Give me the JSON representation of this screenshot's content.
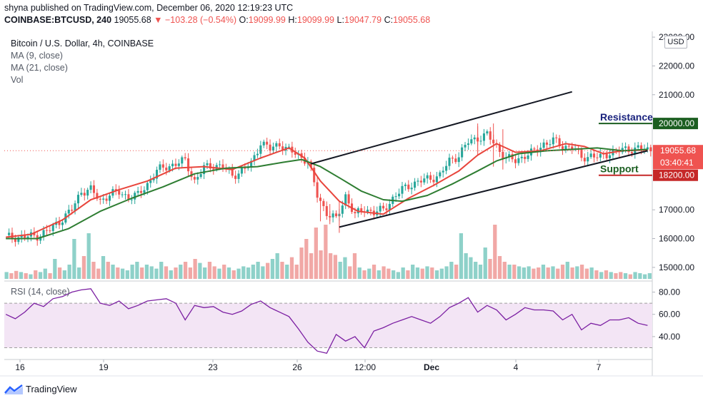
{
  "header": {
    "published": "shyna published on TradingView.com, December 06, 2020 12:19:23 UTC",
    "symbol": "COINBASE:BTCUSD, 240",
    "last": "19055.68",
    "change": "▼ −103.28 (−0.54%)",
    "o_label": "O:",
    "o": "19099.99",
    "h_label": "H:",
    "h": "19099.99",
    "l_label": "L:",
    "l": "19047.79",
    "c_label": "C:",
    "c": "19055.68"
  },
  "legend": {
    "title": "Bitcoin / U.S. Dollar, 4h, COINBASE",
    "ma9": "MA (9, close)",
    "ma21": "MA (21, close)",
    "vol": "Vol",
    "rsi": "RSI (14, close)"
  },
  "currency": "USD",
  "footer": {
    "brand": "TradingView"
  },
  "colors": {
    "up": "#26a69a",
    "down": "#ef5350",
    "ma9": "#e8453c",
    "ma21": "#2e7d32",
    "rsi": "#7b1fa2",
    "rsi_band": "#f3e5f5"
  },
  "chart_data": [
    {
      "type": "candlestick",
      "title": "Bitcoin / U.S. Dollar, 4h, COINBASE",
      "y_ticks": [
        "23000.00",
        "22000.00",
        "21000.00",
        "20000.00",
        "19055.68",
        "03:40:41",
        "18200.00",
        "17000.00",
        "16000.00",
        "15000.00"
      ],
      "x_ticks": [
        "16",
        "19",
        "23",
        "26",
        "12:00",
        "Dec",
        "4",
        "7"
      ],
      "ylim": [
        14600,
        23200
      ],
      "last_price": 19055.68,
      "countdown": "03:40:41",
      "close_path": [
        [
          0,
          16050
        ],
        [
          5,
          16050
        ],
        [
          10,
          16100
        ],
        [
          14,
          16300
        ],
        [
          18,
          16700
        ],
        [
          21,
          17000
        ],
        [
          24,
          17650
        ],
        [
          27,
          17700
        ],
        [
          30,
          17300
        ],
        [
          33,
          17550
        ],
        [
          36,
          17600
        ],
        [
          39,
          17450
        ],
        [
          42,
          17500
        ],
        [
          45,
          17900
        ],
        [
          48,
          18350
        ],
        [
          51,
          18500
        ],
        [
          54,
          18600
        ],
        [
          57,
          18700
        ],
        [
          60,
          18000
        ],
        [
          63,
          18450
        ],
        [
          66,
          18550
        ],
        [
          69,
          18500
        ],
        [
          72,
          18200
        ],
        [
          75,
          18350
        ],
        [
          78,
          18600
        ],
        [
          81,
          19350
        ],
        [
          84,
          19100
        ],
        [
          87,
          19300
        ],
        [
          90,
          19050
        ],
        [
          93,
          18900
        ],
        [
          96,
          18700
        ],
        [
          99,
          17500
        ],
        [
          102,
          16900
        ],
        [
          105,
          16650
        ],
        [
          108,
          17500
        ],
        [
          111,
          16800
        ],
        [
          114,
          17050
        ],
        [
          117,
          16900
        ],
        [
          120,
          17000
        ],
        [
          123,
          17400
        ],
        [
          126,
          17700
        ],
        [
          129,
          17900
        ],
        [
          132,
          18000
        ],
        [
          135,
          18100
        ],
        [
          138,
          18200
        ],
        [
          141,
          18700
        ],
        [
          144,
          18900
        ],
        [
          147,
          19350
        ],
        [
          150,
          19500
        ],
        [
          153,
          19600
        ],
        [
          156,
          19200
        ],
        [
          159,
          18800
        ],
        [
          162,
          18700
        ],
        [
          165,
          18900
        ],
        [
          168,
          19000
        ],
        [
          171,
          19300
        ],
        [
          174,
          19400
        ],
        [
          177,
          19200
        ],
        [
          180,
          19200
        ],
        [
          183,
          18800
        ],
        [
          186,
          18900
        ],
        [
          189,
          18800
        ],
        [
          192,
          19000
        ],
        [
          195,
          19050
        ],
        [
          198,
          19100
        ],
        [
          201,
          19150
        ],
        [
          204,
          19056
        ]
      ],
      "spikes": [
        [
          100,
          17500,
          16600
        ],
        [
          103,
          17200,
          16500
        ],
        [
          106,
          17300,
          16200
        ],
        [
          150,
          20000,
          19000
        ],
        [
          155,
          20000,
          18500
        ],
        [
          158,
          19800,
          18400
        ],
        [
          150,
          19900,
          18900
        ]
      ],
      "series": [
        {
          "name": "MA (9, close)",
          "values": [
            [
              0,
              16050
            ],
            [
              8,
              16150
            ],
            [
              18,
              16650
            ],
            [
              27,
              17350
            ],
            [
              36,
              17700
            ],
            [
              45,
              18000
            ],
            [
              54,
              18450
            ],
            [
              63,
              18500
            ],
            [
              72,
              18400
            ],
            [
              81,
              18800
            ],
            [
              90,
              19150
            ],
            [
              95,
              18800
            ],
            [
              100,
              18000
            ],
            [
              106,
              17300
            ],
            [
              112,
              16950
            ],
            [
              120,
              16850
            ],
            [
              128,
              17400
            ],
            [
              136,
              17850
            ],
            [
              144,
              18350
            ],
            [
              150,
              18900
            ],
            [
              156,
              19300
            ],
            [
              162,
              19000
            ],
            [
              170,
              19050
            ],
            [
              178,
              19300
            ],
            [
              184,
              19200
            ],
            [
              190,
              18950
            ],
            [
              196,
              19050
            ],
            [
              204,
              19080
            ]
          ]
        },
        {
          "name": "MA (21, close)",
          "values": [
            [
              0,
              16000
            ],
            [
              10,
              16000
            ],
            [
              20,
              16350
            ],
            [
              30,
              16950
            ],
            [
              40,
              17400
            ],
            [
              50,
              17800
            ],
            [
              60,
              18250
            ],
            [
              70,
              18450
            ],
            [
              80,
              18500
            ],
            [
              88,
              18650
            ],
            [
              94,
              18750
            ],
            [
              100,
              18500
            ],
            [
              107,
              18050
            ],
            [
              113,
              17650
            ],
            [
              120,
              17350
            ],
            [
              126,
              17300
            ],
            [
              134,
              17500
            ],
            [
              142,
              17900
            ],
            [
              150,
              18350
            ],
            [
              156,
              18700
            ],
            [
              163,
              18950
            ],
            [
              172,
              19050
            ],
            [
              180,
              19100
            ],
            [
              188,
              19150
            ],
            [
              196,
              19050
            ],
            [
              204,
              19100
            ]
          ]
        },
        {
          "name": "Upper channel",
          "values": [
            [
              97,
              18600
            ],
            [
              180,
              21100
            ]
          ]
        },
        {
          "name": "Lower channel",
          "values": [
            [
              106,
              16400
            ],
            [
              204,
              19050
            ]
          ]
        }
      ],
      "annotations": [
        {
          "text": "Resistance",
          "level": 20000.0,
          "label": "20000.00"
        },
        {
          "text": "Support",
          "level": 18200.0,
          "label": "18200.00"
        }
      ]
    },
    {
      "type": "bar",
      "title": "Vol",
      "values": [
        0.12,
        0.1,
        0.14,
        0.12,
        0.1,
        0.08,
        0.15,
        0.12,
        0.18,
        0.1,
        0.35,
        0.2,
        0.15,
        0.25,
        0.7,
        0.2,
        0.4,
        0.8,
        0.3,
        0.18,
        0.4,
        0.3,
        0.25,
        0.2,
        0.18,
        0.15,
        0.25,
        0.3,
        0.2,
        0.25,
        0.22,
        0.18,
        0.3,
        0.22,
        0.15,
        0.2,
        0.25,
        0.3,
        0.2,
        0.35,
        0.28,
        0.2,
        0.3,
        0.22,
        0.18,
        0.25,
        0.2,
        0.15,
        0.18,
        0.22,
        0.2,
        0.25,
        0.3,
        0.22,
        0.28,
        0.35,
        0.45,
        0.3,
        0.25,
        0.38,
        0.25,
        0.55,
        0.7,
        0.45,
        0.9,
        0.5,
        0.95,
        0.45,
        0.42,
        0.3,
        0.38,
        0.22,
        0.45,
        0.2,
        0.15,
        0.18,
        0.25,
        0.15,
        0.22,
        0.18,
        0.15,
        0.12,
        0.2,
        0.15,
        0.25,
        0.2,
        0.18,
        0.22,
        0.2,
        0.15,
        0.18,
        0.22,
        0.3,
        0.25,
        0.8,
        0.45,
        0.38,
        0.3,
        0.25,
        0.55,
        0.35,
        0.95,
        0.4,
        0.3,
        0.25,
        0.25,
        0.22,
        0.2,
        0.22,
        0.18,
        0.2,
        0.25,
        0.2,
        0.22,
        0.18,
        0.25,
        0.3,
        0.2,
        0.22,
        0.25,
        0.18,
        0.2,
        0.15,
        0.12,
        0.15,
        0.12,
        0.1,
        0.12,
        0.1,
        0.08,
        0.12,
        0.1,
        0.08,
        0.1
      ]
    },
    {
      "type": "line",
      "title": "RSI (14, close)",
      "y_ticks": [
        "80.00",
        "60.00",
        "40.00"
      ],
      "ylim": [
        22,
        88
      ],
      "band": [
        30,
        70
      ],
      "x": [
        0,
        3,
        6,
        9,
        12,
        15,
        18,
        21,
        24,
        27,
        30,
        33,
        36,
        39,
        42,
        45,
        48,
        51,
        54,
        57,
        60,
        63,
        66,
        69,
        72,
        75,
        78,
        81,
        84,
        87,
        90,
        93,
        96,
        99,
        102,
        105,
        108,
        111,
        114,
        117,
        120,
        123,
        126,
        129,
        132,
        135,
        138,
        141,
        144,
        147,
        150,
        153,
        156,
        159,
        162,
        165,
        168,
        171,
        174,
        177,
        180,
        183,
        186,
        189,
        192,
        195,
        198,
        201,
        204
      ],
      "values": [
        60,
        56,
        62,
        70,
        67,
        74,
        76,
        80,
        82,
        83,
        70,
        68,
        72,
        65,
        68,
        72,
        73,
        74,
        70,
        55,
        68,
        66,
        67,
        62,
        60,
        63,
        69,
        72,
        66,
        62,
        58,
        47,
        35,
        27,
        25,
        42,
        36,
        40,
        30,
        45,
        48,
        52,
        55,
        58,
        55,
        52,
        58,
        66,
        70,
        75,
        62,
        68,
        64,
        55,
        60,
        66,
        64,
        64,
        63,
        55,
        60,
        46,
        52,
        50,
        55,
        55,
        57,
        52,
        50
      ]
    }
  ]
}
